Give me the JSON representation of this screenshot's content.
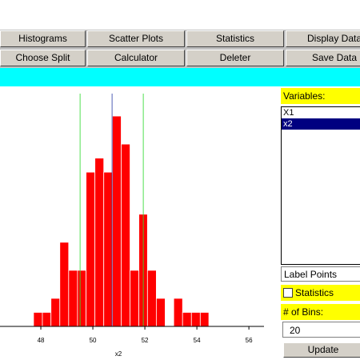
{
  "toolbar": {
    "rows": [
      [
        "Histograms",
        "Scatter Plots",
        "Statistics",
        "Display Data"
      ],
      [
        "Choose Split",
        "Calculator",
        "Deleter",
        "Save Data"
      ]
    ]
  },
  "panel": {
    "variables_label": "Variables:",
    "variables": [
      "X1",
      "x2"
    ],
    "selected": 1,
    "dropdown": "Label Points",
    "checkbox": "Statistics",
    "bins_label": "# of Bins:",
    "bins_value": 20,
    "button": "Update"
  },
  "chart_data": {
    "type": "histogram",
    "x_label": "x2",
    "color": "#ff0000",
    "bins": [
      47.72,
      48.06,
      48.39,
      48.73,
      49.07,
      49.41,
      49.74,
      50.08,
      50.42,
      50.75,
      51.09,
      51.43,
      51.77,
      52.1,
      52.44,
      52.78,
      53.11,
      53.45,
      53.79,
      54.13,
      54.46
    ],
    "values": [
      1,
      1,
      2,
      6,
      4,
      4,
      11,
      12,
      11,
      15,
      13,
      4,
      8,
      4,
      2,
      0,
      2,
      1,
      1,
      1
    ],
    "reference_lines": [
      {
        "value": 49.51,
        "color": "#33dd33"
      },
      {
        "value": 50.74,
        "color": "#3344aa"
      },
      {
        "value": 51.94,
        "color": "#33dd33"
      }
    ],
    "xlim": [
      46.43,
      56.95
    ],
    "ylim": [
      0,
      16.6
    ],
    "xticks": [
      48,
      50,
      52,
      54,
      56
    ]
  }
}
